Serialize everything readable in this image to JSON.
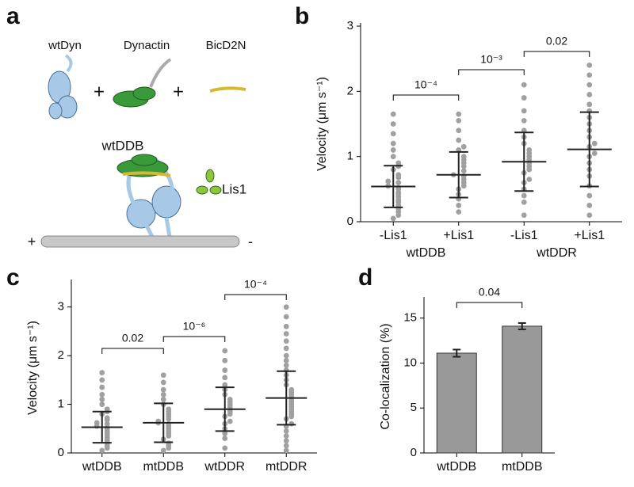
{
  "diagram": {
    "panel": "a",
    "labels": [
      "wtDyn",
      "Dynactin",
      "BicD2N",
      "wtDDB",
      "Lis1"
    ],
    "operators": [
      "+",
      "+"
    ],
    "track_ends": [
      "+",
      "-"
    ]
  },
  "chart_data": [
    {
      "type": "dotplot",
      "panel": "b",
      "ylabel": "Velocity (μm s⁻¹)",
      "categories": [
        "-Lis1",
        "+Lis1",
        "-Lis1",
        "+Lis1"
      ],
      "groups": [
        "wtDDB",
        "wtDDR"
      ],
      "ylim": [
        0,
        3
      ],
      "yticks": [
        0,
        1,
        2,
        3
      ],
      "color": "#a0a0a0",
      "points": [
        [
          0.05,
          0.1,
          0.15,
          0.2,
          0.25,
          0.3,
          0.33,
          0.38,
          0.42,
          0.45,
          0.5,
          0.52,
          0.55,
          0.6,
          0.62,
          0.68,
          0.72,
          0.8,
          0.85,
          0.9,
          1.0,
          1.1,
          1.2,
          1.35,
          1.5,
          1.65
        ],
        [
          0.15,
          0.25,
          0.35,
          0.42,
          0.5,
          0.55,
          0.6,
          0.65,
          0.7,
          0.72,
          0.78,
          0.85,
          0.9,
          0.95,
          1.0,
          1.1,
          1.15,
          1.25,
          1.4,
          1.55,
          1.65
        ],
        [
          0.1,
          0.3,
          0.4,
          0.5,
          0.6,
          0.65,
          0.75,
          0.8,
          0.85,
          0.9,
          0.95,
          1.0,
          1.05,
          1.1,
          1.2,
          1.3,
          1.4,
          1.55,
          1.7,
          1.9,
          2.1
        ],
        [
          0.1,
          0.25,
          0.4,
          0.55,
          0.7,
          0.8,
          0.9,
          1.0,
          1.05,
          1.15,
          1.2,
          1.3,
          1.4,
          1.5,
          1.6,
          1.7,
          1.8,
          1.95,
          2.1,
          2.25,
          2.4
        ]
      ],
      "means": [
        0.54,
        0.72,
        0.92,
        1.11
      ],
      "sd": [
        0.32,
        0.35,
        0.45,
        0.57
      ],
      "comparisons": [
        {
          "pair": [
            0,
            1
          ],
          "label": "10⁻⁴"
        },
        {
          "pair": [
            1,
            2
          ],
          "label": "10⁻³"
        },
        {
          "pair": [
            2,
            3
          ],
          "label": "0.02"
        }
      ]
    },
    {
      "type": "dotplot",
      "panel": "c",
      "ylabel": "Velocity (μm s⁻¹)",
      "categories": [
        "wtDDB",
        "mtDDB",
        "wtDDR",
        "mtDDR"
      ],
      "ylim": [
        0,
        3.5
      ],
      "yticks": [
        0,
        1,
        2,
        3
      ],
      "color": "#a0a0a0",
      "points": [
        [
          0.05,
          0.1,
          0.15,
          0.2,
          0.25,
          0.3,
          0.33,
          0.38,
          0.42,
          0.45,
          0.5,
          0.52,
          0.55,
          0.6,
          0.62,
          0.68,
          0.72,
          0.8,
          0.85,
          0.9,
          1.0,
          1.1,
          1.2,
          1.35,
          1.5,
          1.65
        ],
        [
          0.05,
          0.1,
          0.15,
          0.2,
          0.28,
          0.35,
          0.4,
          0.45,
          0.5,
          0.55,
          0.6,
          0.62,
          0.65,
          0.7,
          0.75,
          0.8,
          0.85,
          0.9,
          1.0,
          1.1,
          1.2,
          1.3,
          1.45,
          1.6
        ],
        [
          0.1,
          0.3,
          0.4,
          0.5,
          0.6,
          0.65,
          0.75,
          0.8,
          0.85,
          0.9,
          0.95,
          1.0,
          1.05,
          1.1,
          1.2,
          1.3,
          1.4,
          1.55,
          1.7,
          1.9,
          2.1
        ],
        [
          0.05,
          0.15,
          0.25,
          0.35,
          0.45,
          0.55,
          0.6,
          0.7,
          0.75,
          0.8,
          0.85,
          0.9,
          0.95,
          1.0,
          1.05,
          1.1,
          1.15,
          1.2,
          1.25,
          1.3,
          1.4,
          1.5,
          1.6,
          1.7,
          1.8,
          1.9,
          2.0,
          2.15,
          2.3,
          2.45,
          2.6,
          2.8,
          3.0
        ]
      ],
      "means": [
        0.53,
        0.62,
        0.9,
        1.13
      ],
      "sd": [
        0.32,
        0.4,
        0.45,
        0.55
      ],
      "comparisons": [
        {
          "pair": [
            0,
            1
          ],
          "label": "0.02"
        },
        {
          "pair": [
            1,
            2
          ],
          "label": "10⁻⁶"
        },
        {
          "pair": [
            2,
            3
          ],
          "label": "10⁻⁴"
        }
      ]
    },
    {
      "type": "bar",
      "panel": "d",
      "ylabel": "Co-localization (%)",
      "categories": [
        "wtDDB",
        "mtDDB"
      ],
      "values": [
        11.1,
        14.1
      ],
      "errors": [
        0.4,
        0.35
      ],
      "ylim": [
        0,
        17
      ],
      "yticks": [
        0,
        5,
        10,
        15
      ],
      "color": "#999999",
      "comparisons": [
        {
          "pair": [
            0,
            1
          ],
          "label": "0.04"
        }
      ]
    }
  ]
}
